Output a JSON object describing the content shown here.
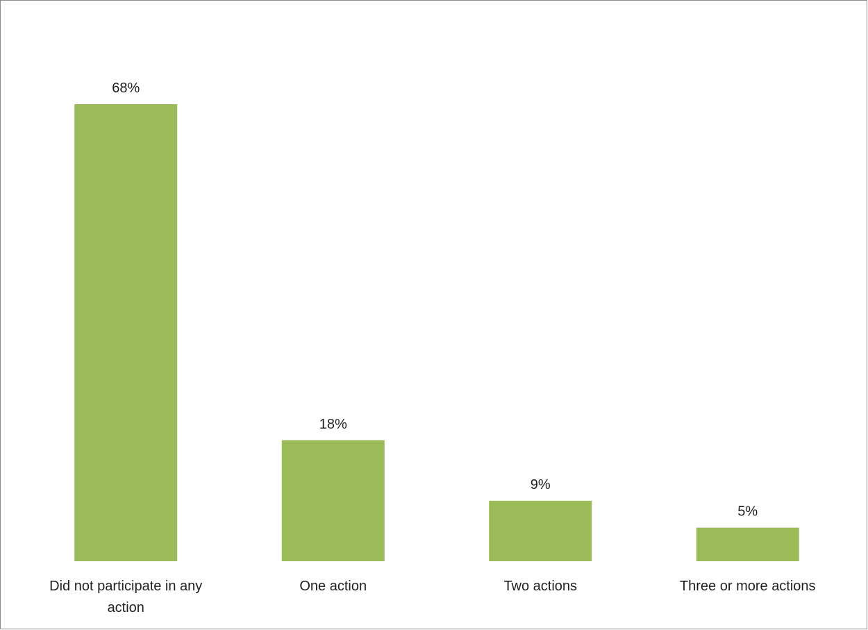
{
  "chart_data": {
    "type": "bar",
    "title": "",
    "xlabel": "",
    "ylabel": "",
    "categories": [
      "Did not participate in any action",
      "One action",
      "Two actions",
      "Three or more actions"
    ],
    "category_lines": [
      [
        "Did not participate in any",
        "action"
      ],
      [
        "One action"
      ],
      [
        "Two actions"
      ],
      [
        "Three or more actions"
      ]
    ],
    "values": [
      68,
      18,
      9,
      5
    ],
    "data_labels": [
      "68%",
      "18%",
      "9%",
      "5%"
    ],
    "ylim": [
      0,
      68
    ],
    "grid": false,
    "legend": "none",
    "bar_color": "#9bbb59"
  }
}
